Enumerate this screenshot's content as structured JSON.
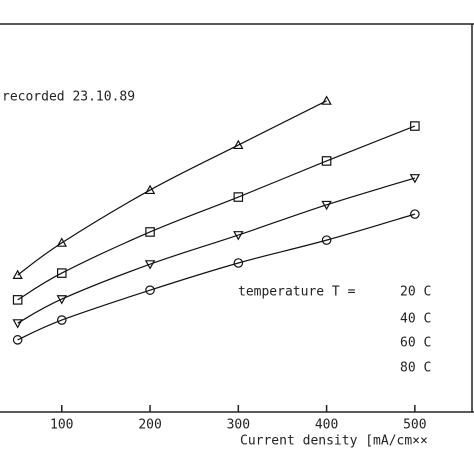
{
  "chart_data": {
    "type": "scatter",
    "annotation": "recorded 23.10.89",
    "x_label": "Current density [mA/cm××",
    "legend_title": "temperature T =",
    "xlim": [
      30,
      567
    ],
    "ylim": [
      0,
      100
    ],
    "xticks": [
      100,
      200,
      300,
      400,
      500
    ],
    "series": [
      {
        "name": "20 C",
        "color": "#111111",
        "marker": "triangle-up",
        "x": [
          50,
          100,
          200,
          300,
          400
        ],
        "values": [
          35.3,
          43.6,
          57.2,
          68.8,
          80.2
        ]
      },
      {
        "name": "40 C",
        "color": "#111111",
        "marker": "square",
        "x": [
          50,
          100,
          200,
          300,
          400,
          500
        ],
        "values": [
          28.9,
          35.8,
          46.4,
          55.4,
          64.7,
          73.7
        ]
      },
      {
        "name": "60 C",
        "color": "#111111",
        "marker": "triangle-down",
        "x": [
          50,
          100,
          200,
          300,
          400,
          500
        ],
        "values": [
          22.9,
          29.1,
          38.1,
          45.6,
          53.4,
          60.3
        ]
      },
      {
        "name": "80 C",
        "color": "#111111",
        "marker": "circle",
        "x": [
          50,
          100,
          200,
          300,
          400,
          500
        ],
        "values": [
          18.6,
          23.7,
          31.4,
          38.4,
          44.3,
          51.0
        ]
      }
    ]
  }
}
